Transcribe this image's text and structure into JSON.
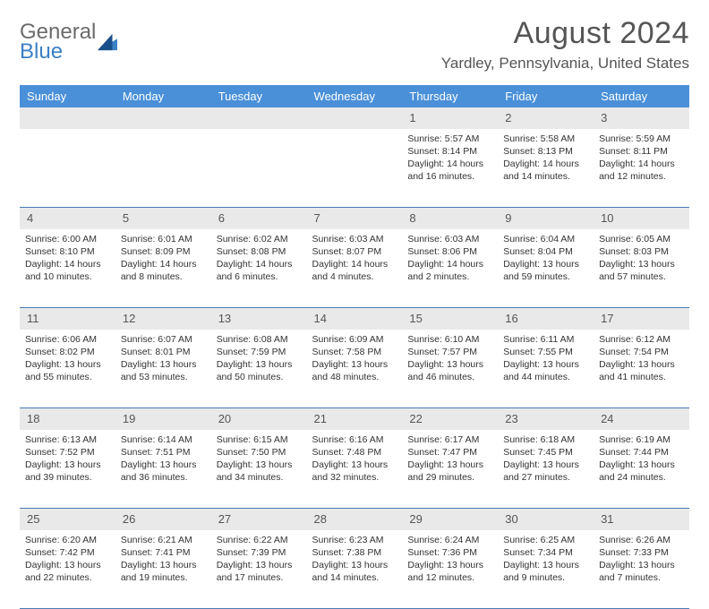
{
  "logo": {
    "general": "General",
    "blue": "Blue"
  },
  "title": "August 2024",
  "location": "Yardley, Pennsylvania, United States",
  "colors": {
    "header_bg": "#4a90d9",
    "header_text": "#ffffff",
    "daynum_bg": "#e9e9e9",
    "row_divider": "#4a7bb5",
    "title_color": "#555555",
    "logo_gray": "#6b6b6b",
    "logo_blue": "#3b7fc4"
  },
  "weekdays": [
    "Sunday",
    "Monday",
    "Tuesday",
    "Wednesday",
    "Thursday",
    "Friday",
    "Saturday"
  ],
  "weeks": [
    [
      {
        "n": "",
        "sr": "",
        "ss": "",
        "dl": ""
      },
      {
        "n": "",
        "sr": "",
        "ss": "",
        "dl": ""
      },
      {
        "n": "",
        "sr": "",
        "ss": "",
        "dl": ""
      },
      {
        "n": "",
        "sr": "",
        "ss": "",
        "dl": ""
      },
      {
        "n": "1",
        "sr": "Sunrise: 5:57 AM",
        "ss": "Sunset: 8:14 PM",
        "dl": "Daylight: 14 hours and 16 minutes."
      },
      {
        "n": "2",
        "sr": "Sunrise: 5:58 AM",
        "ss": "Sunset: 8:13 PM",
        "dl": "Daylight: 14 hours and 14 minutes."
      },
      {
        "n": "3",
        "sr": "Sunrise: 5:59 AM",
        "ss": "Sunset: 8:11 PM",
        "dl": "Daylight: 14 hours and 12 minutes."
      }
    ],
    [
      {
        "n": "4",
        "sr": "Sunrise: 6:00 AM",
        "ss": "Sunset: 8:10 PM",
        "dl": "Daylight: 14 hours and 10 minutes."
      },
      {
        "n": "5",
        "sr": "Sunrise: 6:01 AM",
        "ss": "Sunset: 8:09 PM",
        "dl": "Daylight: 14 hours and 8 minutes."
      },
      {
        "n": "6",
        "sr": "Sunrise: 6:02 AM",
        "ss": "Sunset: 8:08 PM",
        "dl": "Daylight: 14 hours and 6 minutes."
      },
      {
        "n": "7",
        "sr": "Sunrise: 6:03 AM",
        "ss": "Sunset: 8:07 PM",
        "dl": "Daylight: 14 hours and 4 minutes."
      },
      {
        "n": "8",
        "sr": "Sunrise: 6:03 AM",
        "ss": "Sunset: 8:06 PM",
        "dl": "Daylight: 14 hours and 2 minutes."
      },
      {
        "n": "9",
        "sr": "Sunrise: 6:04 AM",
        "ss": "Sunset: 8:04 PM",
        "dl": "Daylight: 13 hours and 59 minutes."
      },
      {
        "n": "10",
        "sr": "Sunrise: 6:05 AM",
        "ss": "Sunset: 8:03 PM",
        "dl": "Daylight: 13 hours and 57 minutes."
      }
    ],
    [
      {
        "n": "11",
        "sr": "Sunrise: 6:06 AM",
        "ss": "Sunset: 8:02 PM",
        "dl": "Daylight: 13 hours and 55 minutes."
      },
      {
        "n": "12",
        "sr": "Sunrise: 6:07 AM",
        "ss": "Sunset: 8:01 PM",
        "dl": "Daylight: 13 hours and 53 minutes."
      },
      {
        "n": "13",
        "sr": "Sunrise: 6:08 AM",
        "ss": "Sunset: 7:59 PM",
        "dl": "Daylight: 13 hours and 50 minutes."
      },
      {
        "n": "14",
        "sr": "Sunrise: 6:09 AM",
        "ss": "Sunset: 7:58 PM",
        "dl": "Daylight: 13 hours and 48 minutes."
      },
      {
        "n": "15",
        "sr": "Sunrise: 6:10 AM",
        "ss": "Sunset: 7:57 PM",
        "dl": "Daylight: 13 hours and 46 minutes."
      },
      {
        "n": "16",
        "sr": "Sunrise: 6:11 AM",
        "ss": "Sunset: 7:55 PM",
        "dl": "Daylight: 13 hours and 44 minutes."
      },
      {
        "n": "17",
        "sr": "Sunrise: 6:12 AM",
        "ss": "Sunset: 7:54 PM",
        "dl": "Daylight: 13 hours and 41 minutes."
      }
    ],
    [
      {
        "n": "18",
        "sr": "Sunrise: 6:13 AM",
        "ss": "Sunset: 7:52 PM",
        "dl": "Daylight: 13 hours and 39 minutes."
      },
      {
        "n": "19",
        "sr": "Sunrise: 6:14 AM",
        "ss": "Sunset: 7:51 PM",
        "dl": "Daylight: 13 hours and 36 minutes."
      },
      {
        "n": "20",
        "sr": "Sunrise: 6:15 AM",
        "ss": "Sunset: 7:50 PM",
        "dl": "Daylight: 13 hours and 34 minutes."
      },
      {
        "n": "21",
        "sr": "Sunrise: 6:16 AM",
        "ss": "Sunset: 7:48 PM",
        "dl": "Daylight: 13 hours and 32 minutes."
      },
      {
        "n": "22",
        "sr": "Sunrise: 6:17 AM",
        "ss": "Sunset: 7:47 PM",
        "dl": "Daylight: 13 hours and 29 minutes."
      },
      {
        "n": "23",
        "sr": "Sunrise: 6:18 AM",
        "ss": "Sunset: 7:45 PM",
        "dl": "Daylight: 13 hours and 27 minutes."
      },
      {
        "n": "24",
        "sr": "Sunrise: 6:19 AM",
        "ss": "Sunset: 7:44 PM",
        "dl": "Daylight: 13 hours and 24 minutes."
      }
    ],
    [
      {
        "n": "25",
        "sr": "Sunrise: 6:20 AM",
        "ss": "Sunset: 7:42 PM",
        "dl": "Daylight: 13 hours and 22 minutes."
      },
      {
        "n": "26",
        "sr": "Sunrise: 6:21 AM",
        "ss": "Sunset: 7:41 PM",
        "dl": "Daylight: 13 hours and 19 minutes."
      },
      {
        "n": "27",
        "sr": "Sunrise: 6:22 AM",
        "ss": "Sunset: 7:39 PM",
        "dl": "Daylight: 13 hours and 17 minutes."
      },
      {
        "n": "28",
        "sr": "Sunrise: 6:23 AM",
        "ss": "Sunset: 7:38 PM",
        "dl": "Daylight: 13 hours and 14 minutes."
      },
      {
        "n": "29",
        "sr": "Sunrise: 6:24 AM",
        "ss": "Sunset: 7:36 PM",
        "dl": "Daylight: 13 hours and 12 minutes."
      },
      {
        "n": "30",
        "sr": "Sunrise: 6:25 AM",
        "ss": "Sunset: 7:34 PM",
        "dl": "Daylight: 13 hours and 9 minutes."
      },
      {
        "n": "31",
        "sr": "Sunrise: 6:26 AM",
        "ss": "Sunset: 7:33 PM",
        "dl": "Daylight: 13 hours and 7 minutes."
      }
    ]
  ]
}
